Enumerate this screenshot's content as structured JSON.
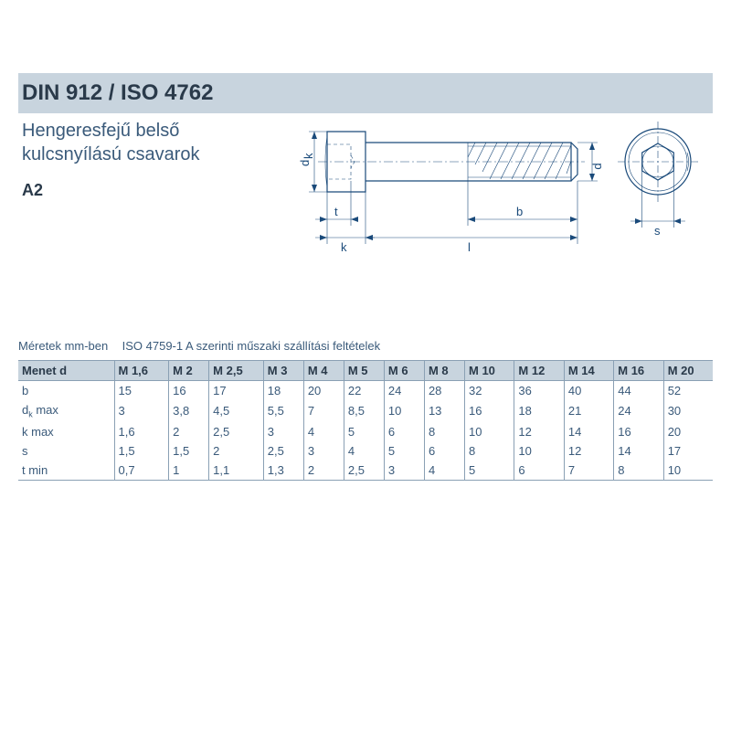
{
  "header": {
    "standard": "DIN 912 / ISO 4762",
    "description_l1": "Hengeresfejű belső",
    "description_l2": "kulcsnyílású csavarok",
    "material": "A2"
  },
  "caption": {
    "left": "Méretek mm-ben",
    "right": "ISO 4759-1 A szerinti műszaki szállítási feltételek"
  },
  "diagram_labels": {
    "dk": "d",
    "k_sub": "k",
    "t": "t",
    "k": "k",
    "l": "l",
    "b": "b",
    "d": "d",
    "s": "s"
  },
  "table": {
    "header_first": "Menet d",
    "columns": [
      "M 1,6",
      "M 2",
      "M 2,5",
      "M 3",
      "M 4",
      "M 5",
      "M 6",
      "M 8",
      "M 10",
      "M 12",
      "M 14",
      "M 16",
      "M 20"
    ],
    "rows": [
      {
        "label": "b",
        "vals": [
          "15",
          "16",
          "17",
          "18",
          "20",
          "22",
          "24",
          "28",
          "32",
          "36",
          "40",
          "44",
          "52"
        ]
      },
      {
        "label": "d<sub>k</sub> max",
        "vals": [
          "3",
          "3,8",
          "4,5",
          "5,5",
          "7",
          "8,5",
          "10",
          "13",
          "16",
          "18",
          "21",
          "24",
          "30"
        ]
      },
      {
        "label": "k max",
        "vals": [
          "1,6",
          "2",
          "2,5",
          "3",
          "4",
          "5",
          "6",
          "8",
          "10",
          "12",
          "14",
          "16",
          "20"
        ]
      },
      {
        "label": "s",
        "vals": [
          "1,5",
          "1,5",
          "2",
          "2,5",
          "3",
          "4",
          "5",
          "6",
          "8",
          "10",
          "12",
          "14",
          "17"
        ]
      },
      {
        "label": "t min",
        "vals": [
          "0,7",
          "1",
          "1,1",
          "1,3",
          "2",
          "2,5",
          "3",
          "4",
          "5",
          "6",
          "7",
          "8",
          "10"
        ]
      }
    ]
  },
  "colors": {
    "header_bg": "#c8d4de",
    "line": "#1a4a7a",
    "text": "#3a5a7a",
    "border": "#8aa0b4"
  }
}
